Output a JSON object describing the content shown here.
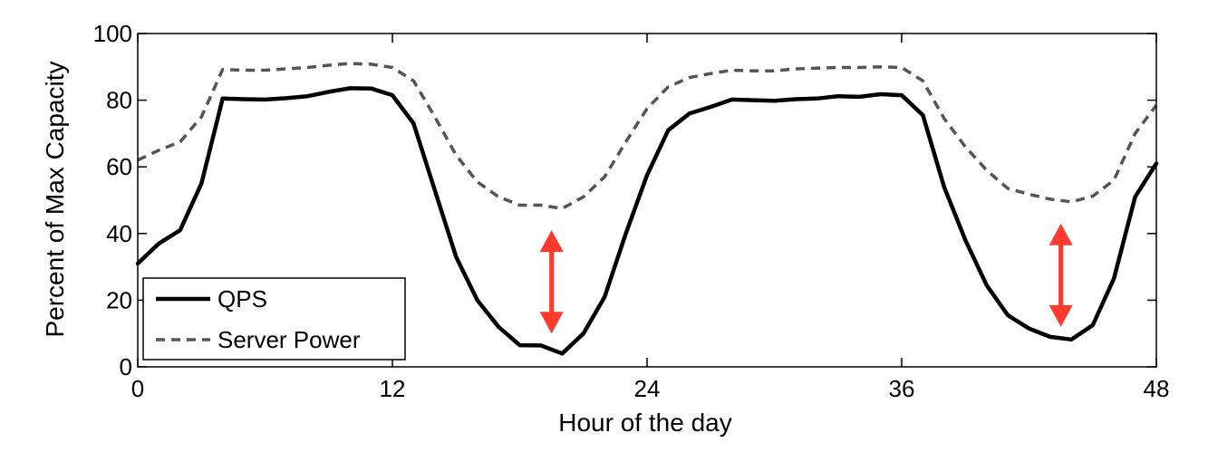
{
  "chart_data": {
    "type": "line",
    "xlabel": "Hour of the day",
    "ylabel": "Percent of Max Capacity",
    "xlim": [
      0,
      48
    ],
    "ylim": [
      0,
      100
    ],
    "xticks": [
      0,
      12,
      24,
      36,
      48
    ],
    "yticks": [
      0,
      20,
      40,
      60,
      80,
      100
    ],
    "grid": false,
    "legend_position": "bottom-left",
    "series": [
      {
        "name": "QPS",
        "color": "#000000",
        "style": "solid",
        "x": [
          0,
          1,
          2,
          3,
          4,
          5,
          6,
          7,
          8,
          9,
          10,
          11,
          12,
          13,
          14,
          15,
          16,
          17,
          18,
          19,
          20,
          21,
          22,
          23,
          24,
          25,
          26,
          27,
          28,
          29,
          30,
          31,
          32,
          33,
          34,
          35,
          36,
          37,
          38,
          39,
          40,
          41,
          42,
          43,
          44,
          45,
          46,
          47,
          48
        ],
        "y": [
          31,
          37,
          41,
          55,
          80.5,
          80.3,
          80.2,
          80.6,
          81.2,
          82.5,
          83.6,
          83.5,
          81.5,
          73,
          53,
          33,
          20,
          12,
          6.5,
          6.4,
          4,
          10,
          21,
          40,
          57.5,
          71,
          76,
          78,
          80.2,
          80,
          79.8,
          80.3,
          80.5,
          81.2,
          81,
          81.8,
          81.5,
          75.5,
          54,
          38,
          24.5,
          15.5,
          11.5,
          9,
          8.2,
          12.5,
          26.5,
          51,
          61
        ]
      },
      {
        "name": "Server Power",
        "color": "#555555",
        "style": "dashed",
        "x": [
          0,
          1,
          2,
          3,
          4,
          5,
          6,
          7,
          8,
          9,
          10,
          11,
          12,
          13,
          14,
          15,
          16,
          17,
          18,
          19,
          20,
          21,
          22,
          23,
          24,
          25,
          26,
          27,
          28,
          29,
          30,
          31,
          32,
          33,
          34,
          35,
          36,
          37,
          38,
          39,
          40,
          41,
          42,
          43,
          44,
          45,
          46,
          47,
          48
        ],
        "y": [
          62,
          65,
          67.5,
          75,
          89.2,
          89,
          89,
          89.4,
          89.8,
          90.5,
          91,
          90.8,
          89.8,
          85.8,
          75,
          63.5,
          55.5,
          51,
          48.5,
          48.5,
          47.5,
          51,
          57,
          67.5,
          77.5,
          84,
          86.8,
          88,
          89,
          88.8,
          88.8,
          89.4,
          89.6,
          89.8,
          89.8,
          90,
          89.8,
          85.8,
          74.5,
          66,
          59,
          53.5,
          51.8,
          50.3,
          49.5,
          51.2,
          56,
          70,
          78.5
        ]
      }
    ],
    "annotations": [
      {
        "type": "double-arrow",
        "color": "#FF3B30",
        "x": 19.5,
        "y_start": 10,
        "y_end": 41
      },
      {
        "type": "double-arrow",
        "color": "#FF3B30",
        "x": 43.5,
        "y_start": 12,
        "y_end": 43
      }
    ]
  }
}
